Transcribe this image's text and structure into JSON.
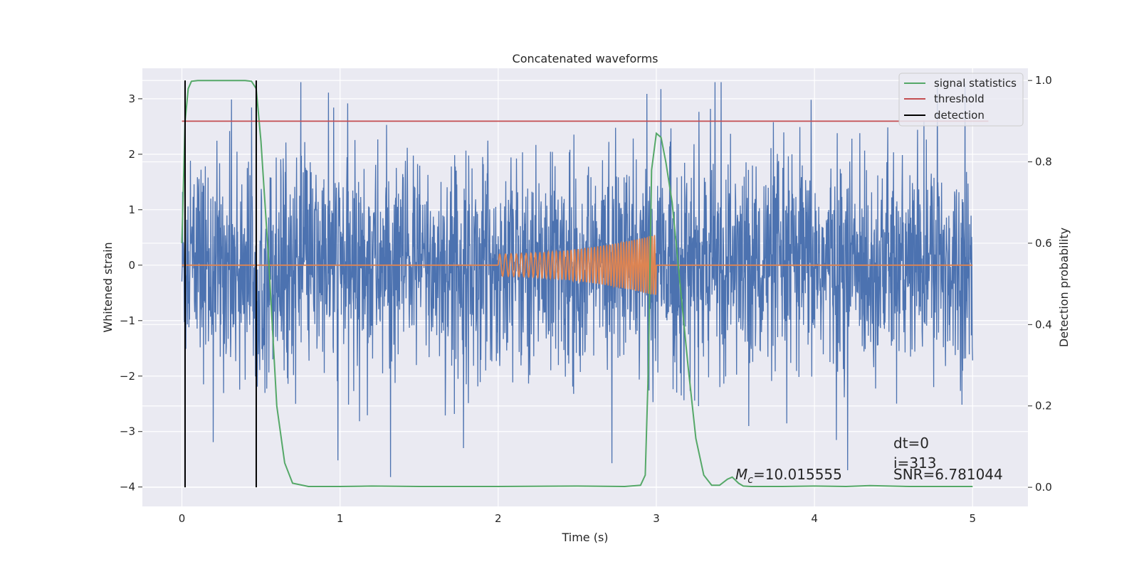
{
  "chart_data": {
    "type": "line",
    "title": "Concatenated waveforms",
    "xlabel": "Time (s)",
    "ylabel": "Whitened strain",
    "y2label": "Detection probability",
    "xlim": [
      -0.25,
      5.35
    ],
    "ylim": [
      -4.35,
      3.55
    ],
    "y2lim": [
      -0.047,
      1.03
    ],
    "xticks": [
      0,
      1,
      2,
      3,
      4,
      5
    ],
    "yticks": [
      -4,
      -3,
      -2,
      -1,
      0,
      1,
      2,
      3
    ],
    "y2ticks": [
      0.0,
      0.2,
      0.4,
      0.6,
      0.8,
      1.0
    ],
    "grid": true,
    "legend_position": "top-right",
    "legend": [
      "signal statistics",
      "threshold",
      "detection"
    ],
    "colors": {
      "strain": "#4c72b0",
      "template": "#dd8452",
      "signal_statistics": "#55a868",
      "threshold": "#c44e52",
      "detection": "#000000",
      "background": "#eaeaf2",
      "grid": "#ffffff"
    },
    "series": [
      {
        "name": "signal statistics",
        "axis": "right",
        "x": [
          0.0,
          0.02,
          0.04,
          0.06,
          0.1,
          0.2,
          0.3,
          0.4,
          0.44,
          0.47,
          0.5,
          0.55,
          0.6,
          0.65,
          0.7,
          0.8,
          1.0,
          1.2,
          1.5,
          2.0,
          2.5,
          2.8,
          2.9,
          2.93,
          2.95,
          2.97,
          3.0,
          3.03,
          3.06,
          3.1,
          3.15,
          3.2,
          3.25,
          3.3,
          3.35,
          3.4,
          3.45,
          3.48,
          3.52,
          3.55,
          3.6,
          3.8,
          4.0,
          4.2,
          4.35,
          4.6,
          5.0
        ],
        "y": [
          0.6,
          0.9,
          0.98,
          0.998,
          1.0,
          1.0,
          1.0,
          1.0,
          0.998,
          0.98,
          0.85,
          0.55,
          0.2,
          0.06,
          0.01,
          0.002,
          0.002,
          0.003,
          0.002,
          0.002,
          0.003,
          0.002,
          0.005,
          0.03,
          0.3,
          0.78,
          0.87,
          0.86,
          0.8,
          0.7,
          0.5,
          0.3,
          0.12,
          0.03,
          0.005,
          0.005,
          0.02,
          0.025,
          0.01,
          0.003,
          0.002,
          0.002,
          0.003,
          0.002,
          0.004,
          0.002,
          0.002
        ]
      },
      {
        "name": "threshold",
        "axis": "right",
        "x": [
          0.0,
          5.1
        ],
        "y": [
          0.9,
          0.9
        ]
      },
      {
        "name": "detection",
        "axis": "right",
        "x": [
          0.02,
          0.47
        ],
        "y": [
          0.0,
          1.0
        ]
      },
      {
        "axis": "left",
        "x": [
          0.0,
          5.0
        ],
        "y_range": [
          -4.0,
          3.3
        ]
      },
      {
        "axis": "left",
        "x": [
          0.0,
          2.0,
          3.0,
          5.0
        ],
        "y": [
          0.0,
          0.0,
          0.0,
          0.0
        ],
        "amplitude": [
          0.2,
          0.55
        ]
      }
    ],
    "annotations": [
      {
        "text": "M",
        "sub": "c",
        "value": "=10.015555",
        "x": 3.5,
        "y": -3.95
      },
      {
        "text": "dt=0",
        "x": 4.5,
        "y": -3.35
      },
      {
        "text": "i=313",
        "x": 4.5,
        "y": -3.72
      },
      {
        "text": "SNR=6.781044",
        "x": 4.5,
        "y": -3.95
      }
    ]
  }
}
